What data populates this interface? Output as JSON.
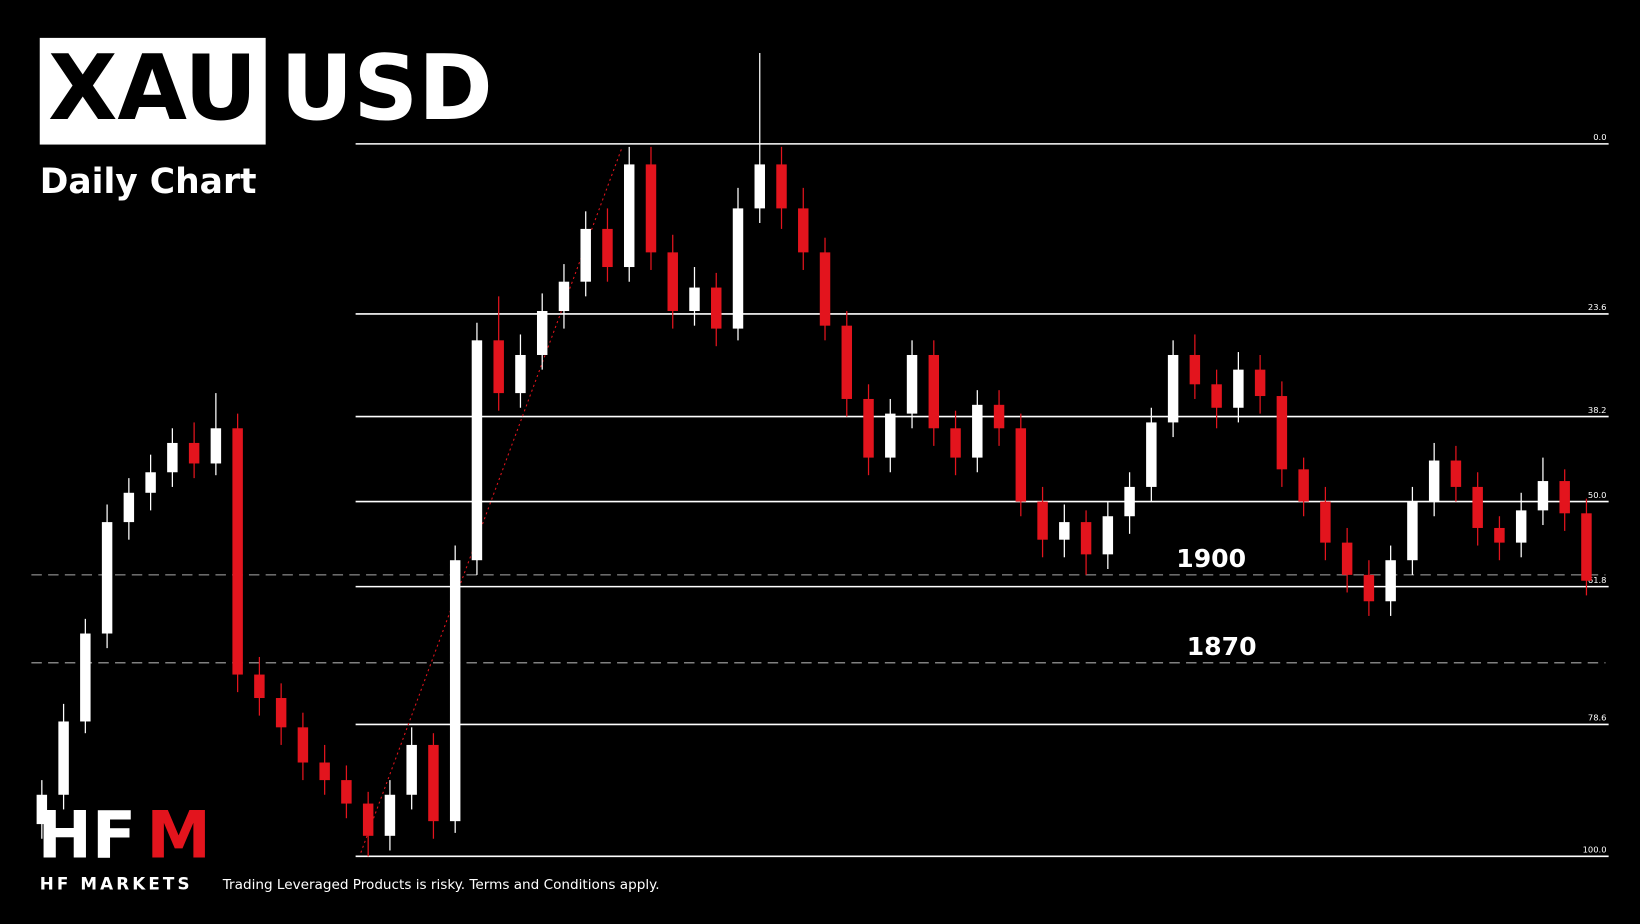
{
  "chart_data": {
    "type": "candlestick",
    "title": [
      "XAU",
      "USD"
    ],
    "subtitle": "Daily Chart",
    "up_color": "#ffffff",
    "down_color": "#e3141d",
    "ylim": [
      1781,
      2096
    ],
    "candles": [
      [
        1815,
        1830,
        1810,
        1825
      ],
      [
        1825,
        1856,
        1820,
        1850
      ],
      [
        1850,
        1885,
        1846,
        1880
      ],
      [
        1880,
        1924,
        1875,
        1918
      ],
      [
        1918,
        1933,
        1912,
        1928
      ],
      [
        1928,
        1941,
        1922,
        1935
      ],
      [
        1935,
        1950,
        1930,
        1945
      ],
      [
        1945,
        1952,
        1933,
        1938
      ],
      [
        1938,
        1962,
        1934,
        1950
      ],
      [
        1950,
        1955,
        1860,
        1866
      ],
      [
        1866,
        1872,
        1852,
        1858
      ],
      [
        1858,
        1863,
        1842,
        1848
      ],
      [
        1848,
        1853,
        1830,
        1836
      ],
      [
        1836,
        1842,
        1825,
        1830
      ],
      [
        1830,
        1835,
        1817,
        1822
      ],
      [
        1822,
        1826,
        1804,
        1811
      ],
      [
        1811,
        1830,
        1806,
        1825
      ],
      [
        1825,
        1848,
        1820,
        1842
      ],
      [
        1842,
        1846,
        1810,
        1816
      ],
      [
        1816,
        1910,
        1812,
        1905
      ],
      [
        1905,
        1986,
        1900,
        1980
      ],
      [
        1980,
        1995,
        1956,
        1962
      ],
      [
        1962,
        1982,
        1957,
        1975
      ],
      [
        1975,
        1996,
        1970,
        1990
      ],
      [
        1990,
        2006,
        1984,
        2000
      ],
      [
        2000,
        2024,
        1995,
        2018
      ],
      [
        2018,
        2025,
        2000,
        2005
      ],
      [
        2005,
        2046,
        2000,
        2040
      ],
      [
        2040,
        2046,
        2004,
        2010
      ],
      [
        2010,
        2016,
        1984,
        1990
      ],
      [
        1990,
        2005,
        1985,
        1998
      ],
      [
        1998,
        2003,
        1978,
        1984
      ],
      [
        1984,
        2032,
        1980,
        2025
      ],
      [
        2025,
        2078,
        2020,
        2040
      ],
      [
        2040,
        2046,
        2018,
        2025
      ],
      [
        2025,
        2032,
        2004,
        2010
      ],
      [
        2010,
        2015,
        1980,
        1985
      ],
      [
        1985,
        1990,
        1954,
        1960
      ],
      [
        1960,
        1965,
        1934,
        1940
      ],
      [
        1940,
        1960,
        1935,
        1955
      ],
      [
        1955,
        1980,
        1950,
        1975
      ],
      [
        1975,
        1980,
        1944,
        1950
      ],
      [
        1950,
        1956,
        1934,
        1940
      ],
      [
        1940,
        1963,
        1935,
        1958
      ],
      [
        1958,
        1963,
        1944,
        1950
      ],
      [
        1950,
        1955,
        1920,
        1925
      ],
      [
        1925,
        1930,
        1906,
        1912
      ],
      [
        1912,
        1924,
        1906,
        1918
      ],
      [
        1918,
        1922,
        1900,
        1907
      ],
      [
        1907,
        1925,
        1902,
        1920
      ],
      [
        1920,
        1935,
        1914,
        1930
      ],
      [
        1930,
        1957,
        1925,
        1952
      ],
      [
        1952,
        1980,
        1947,
        1975
      ],
      [
        1975,
        1982,
        1960,
        1965
      ],
      [
        1965,
        1970,
        1950,
        1957
      ],
      [
        1957,
        1976,
        1952,
        1970
      ],
      [
        1970,
        1975,
        1955,
        1961
      ],
      [
        1961,
        1966,
        1930,
        1936
      ],
      [
        1936,
        1940,
        1920,
        1925
      ],
      [
        1925,
        1930,
        1905,
        1911
      ],
      [
        1911,
        1916,
        1894,
        1900
      ],
      [
        1900,
        1905,
        1886,
        1891
      ],
      [
        1891,
        1910,
        1886,
        1905
      ],
      [
        1905,
        1930,
        1900,
        1925
      ],
      [
        1925,
        1945,
        1920,
        1939
      ],
      [
        1939,
        1944,
        1925,
        1930
      ],
      [
        1930,
        1935,
        1910,
        1916
      ],
      [
        1916,
        1920,
        1905,
        1911
      ],
      [
        1911,
        1928,
        1906,
        1922
      ],
      [
        1922,
        1940,
        1917,
        1932
      ],
      [
        1932,
        1936,
        1915,
        1921
      ],
      [
        1921,
        1926,
        1893,
        1898
      ]
    ],
    "fib_levels": [
      {
        "value": 2047,
        "label": "0.0"
      },
      {
        "value": 1989,
        "label": "23.6"
      },
      {
        "value": 1954,
        "label": "38.2"
      },
      {
        "value": 1925,
        "label": "50.0"
      },
      {
        "value": 1896,
        "label": "61.8"
      },
      {
        "value": 1849,
        "label": "78.6"
      },
      {
        "value": 1804,
        "label": "100.0"
      }
    ],
    "support_levels": [
      {
        "value": 1900,
        "label": "1900"
      },
      {
        "value": 1870,
        "label": "1870"
      }
    ],
    "logo": [
      "HF",
      "M"
    ],
    "brand": "HF MARKETS",
    "disclaimer": "Trading Leveraged Products is risky. Terms and Conditions apply."
  }
}
